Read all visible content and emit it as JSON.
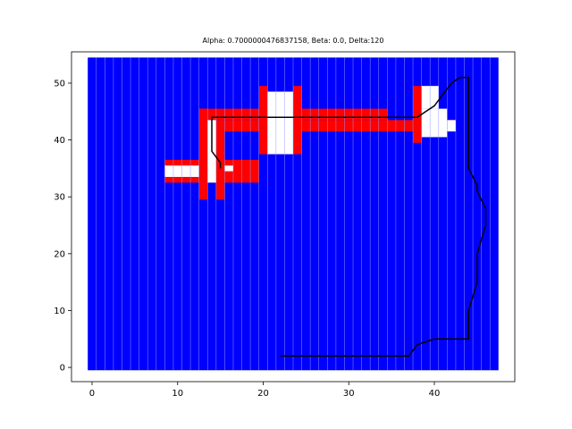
{
  "chart_data": {
    "type": "heatmap",
    "title": "Alpha: 0.7000000476837158, Beta: 0.0, Delta:120",
    "xlabel": "",
    "ylabel": "",
    "xlim": [
      -2.4,
      49.4
    ],
    "ylim": [
      -2.5,
      55.5
    ],
    "xticks": [
      0,
      10,
      20,
      30,
      40
    ],
    "yticks": [
      0,
      10,
      20,
      30,
      40,
      50
    ],
    "grid": false,
    "legend": false,
    "grid_extent": {
      "x": [
        -0.5,
        47.5
      ],
      "y": [
        -0.5,
        54.5
      ]
    },
    "colors": {
      "free": "#0000ff",
      "obstacle": "#ff0000",
      "unknown": "#ffffff",
      "column_separator": "#9999ff",
      "path": "#000000"
    },
    "obstacle_cells": [
      [
        13,
        30,
        14,
        46
      ],
      [
        15,
        30,
        16,
        44
      ],
      [
        13,
        44,
        35,
        46
      ],
      [
        16,
        42,
        43,
        44
      ],
      [
        9,
        33,
        20,
        37
      ],
      [
        20,
        38,
        21,
        50
      ],
      [
        24,
        38,
        25,
        50
      ],
      [
        38,
        40,
        39,
        50
      ]
    ],
    "unknown_cells": [
      [
        14,
        33,
        15,
        44
      ],
      [
        9,
        34,
        13,
        36
      ],
      [
        16,
        35,
        17,
        36
      ],
      [
        21,
        38,
        24,
        49
      ],
      [
        23,
        38,
        24,
        39
      ],
      [
        39,
        41,
        42,
        46
      ],
      [
        39,
        46,
        41,
        50
      ],
      [
        42,
        42,
        43,
        44
      ],
      [
        21,
        39,
        23,
        40
      ]
    ],
    "path": {
      "x": [
        22,
        37,
        38,
        40,
        42,
        44,
        44,
        45,
        45,
        46,
        46,
        45,
        45,
        44,
        44,
        43,
        42,
        41,
        40,
        39,
        38,
        35,
        14,
        14,
        15,
        15
      ],
      "y": [
        2,
        2,
        4,
        5,
        5,
        5,
        10,
        15,
        20,
        25,
        28,
        31,
        32,
        35,
        51,
        51,
        50,
        48,
        46,
        45,
        44,
        44,
        44,
        38,
        36,
        35
      ]
    }
  }
}
